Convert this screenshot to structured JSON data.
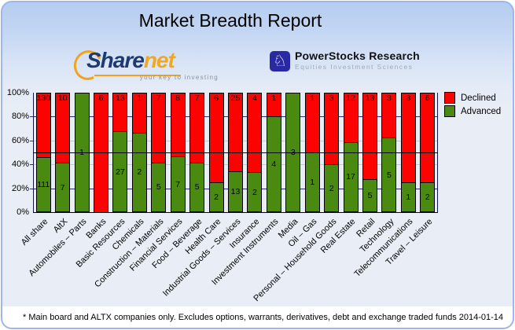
{
  "title": "Market Breadth Report",
  "logos": {
    "sharenet": {
      "text_primary": "Share",
      "text_secondary": "net",
      "tagline": "your key to investing"
    },
    "powerstocks": {
      "name": "PowerStocks  Research",
      "subtitle": "Equities Investment Sciences",
      "icon": "knight-chess-icon"
    }
  },
  "legend": {
    "declined": "Declined",
    "advanced": "Advanced"
  },
  "footer": {
    "note": "* Main board and ALTX companies only. Excludes options, warrants, derivatives, debt and exchange traded funds",
    "date": "2014-01-14"
  },
  "colors": {
    "declined": "#fa0300",
    "advanced": "#4a8a10",
    "grid_major": "#2a2a8f",
    "grid_minor": "#c6c9d0",
    "reference_line": "#000000",
    "card_border": "#9db7e8",
    "background": "#e9eef6"
  },
  "chart_data": {
    "type": "bar",
    "stacked": true,
    "percent_scale": true,
    "title": "Market Breadth Report",
    "ylim": [
      0,
      100
    ],
    "y_ticks": [
      "0%",
      "20%",
      "40%",
      "60%",
      "80%",
      "100%"
    ],
    "grid": true,
    "reference_line_pct": 50,
    "legend_position": "right",
    "categories": [
      "All share",
      "AltX",
      "Automobiles – Parts",
      "Banks",
      "Basic Resources",
      "Chemicals",
      "Construction – Materials",
      "Financial Services",
      "Food – Beverage",
      "Health Care",
      "Industrial Goods – Services",
      "Insurance",
      "Investment Instruments",
      "Media",
      "Oil – Gas",
      "Personal – Household Goods",
      "Real Estate",
      "Retail",
      "Technology",
      "Telecommunications",
      "Travel – Leisure"
    ],
    "series": [
      {
        "name": "Declined",
        "color": "#fa0300",
        "values": [
          130,
          10,
          0,
          6,
          13,
          1,
          7,
          8,
          7,
          6,
          25,
          4,
          1,
          0,
          1,
          3,
          12,
          13,
          3,
          3,
          6
        ]
      },
      {
        "name": "Advanced",
        "color": "#4a8a10",
        "values": [
          111,
          7,
          1,
          0,
          27,
          2,
          5,
          7,
          5,
          2,
          13,
          2,
          4,
          3,
          1,
          2,
          17,
          5,
          5,
          1,
          2
        ]
      }
    ]
  }
}
